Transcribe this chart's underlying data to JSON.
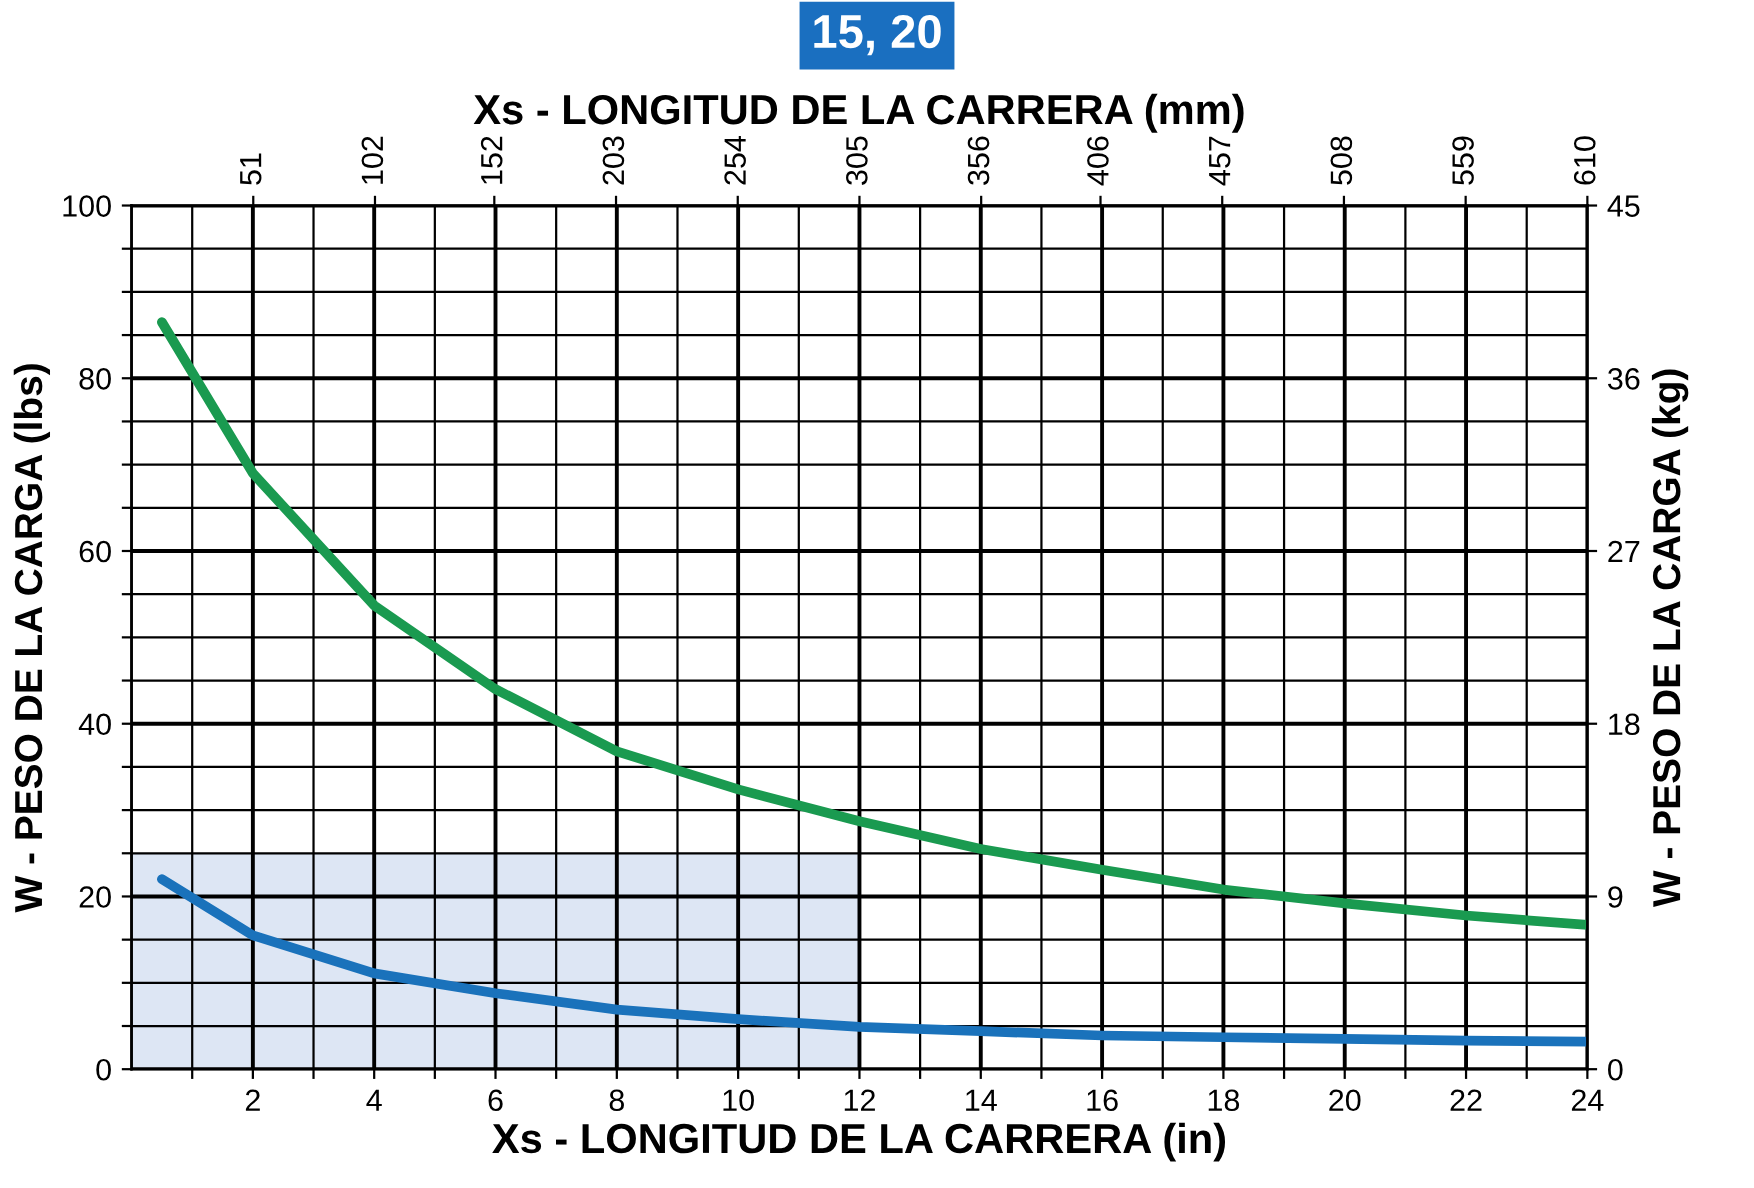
{
  "chart_data": {
    "type": "line",
    "title": "15, 20",
    "xlabel": "Xs - LONGITUD DE LA CARRERA (in)",
    "x2label": "Xs - LONGITUD DE LA CARRERA (mm)",
    "ylabel": "W - PESO DE LA CARGA (lbs)",
    "y2label": "W - PESO DE LA CARGA (kg)",
    "xlim": [
      0,
      24
    ],
    "xticks": [
      {
        "value": 1,
        "label": null
      },
      2,
      {
        "value": 3,
        "label": null
      },
      4,
      {
        "value": 5,
        "label": null
      },
      6,
      {
        "value": 7,
        "label": null
      },
      8,
      {
        "value": 9,
        "label": null
      },
      10,
      {
        "value": 11,
        "label": null
      },
      12,
      {
        "value": 13,
        "label": null
      },
      14,
      {
        "value": 15,
        "label": null
      },
      16,
      {
        "value": 17,
        "label": null
      },
      18,
      {
        "value": 19,
        "label": null
      },
      20,
      {
        "value": 21,
        "label": null
      },
      22,
      {
        "value": 23,
        "label": null
      },
      24
    ],
    "x2lim": [
      0,
      610
    ],
    "x2ticks": [
      51,
      102,
      152,
      203,
      254,
      305,
      356,
      406,
      457,
      508,
      559,
      610
    ],
    "ylim": [
      0,
      100
    ],
    "yticks": [
      0,
      {
        "value": 5,
        "label": null
      },
      {
        "value": 10,
        "label": null
      },
      {
        "value": 15,
        "label": null
      },
      20,
      {
        "value": 25,
        "label": null
      },
      {
        "value": 30,
        "label": null
      },
      {
        "value": 35,
        "label": null
      },
      40,
      {
        "value": 45,
        "label": null
      },
      {
        "value": 50,
        "label": null
      },
      {
        "value": 55,
        "label": null
      },
      60,
      {
        "value": 65,
        "label": null
      },
      {
        "value": 70,
        "label": null
      },
      {
        "value": 75,
        "label": null
      },
      80,
      {
        "value": 85,
        "label": null
      },
      {
        "value": 90,
        "label": null
      },
      {
        "value": 95,
        "label": null
      },
      100
    ],
    "y2lim": [
      0,
      45
    ],
    "y2ticks": [
      0,
      9,
      18,
      27,
      36,
      45
    ],
    "grid": true,
    "marker": "none",
    "line_style": "solid",
    "x": [
      0.5,
      2,
      4,
      6,
      8,
      10,
      12,
      14,
      16,
      18,
      20,
      22,
      24
    ],
    "series": [
      {
        "type": "area",
        "color": "#dde6f4",
        "x": [
          0,
          12
        ],
        "values": [
          25,
          25
        ]
      },
      {
        "color": "#1a9a50",
        "values": [
          86.5,
          69,
          53.7,
          44,
          36.8,
          32.4,
          28.7,
          25.5,
          23.1,
          20.8,
          19.2,
          17.8,
          16.7
        ]
      },
      {
        "color": "#1a72bb",
        "values": [
          22,
          15.5,
          11.1,
          8.8,
          6.9,
          5.8,
          4.9,
          4.4,
          3.9,
          3.7,
          3.5,
          3.3,
          3.2
        ]
      }
    ]
  }
}
